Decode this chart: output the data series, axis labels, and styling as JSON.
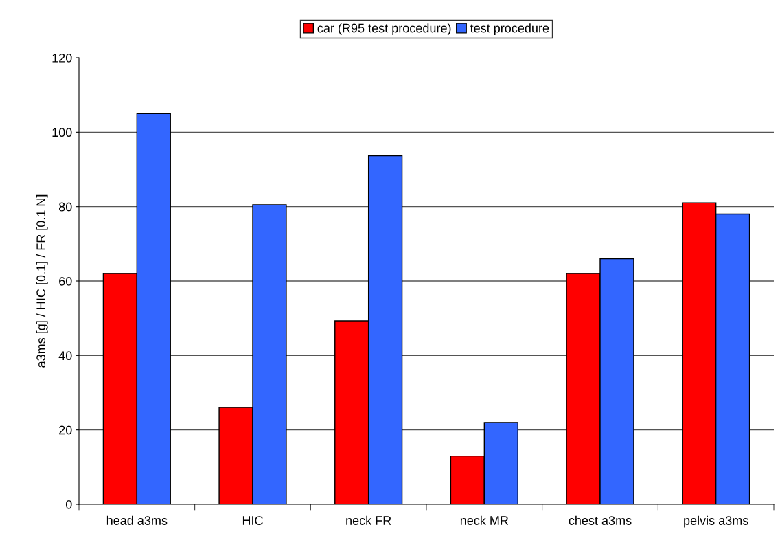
{
  "chart_data": {
    "type": "bar",
    "ylabel": "a3ms [g] / HIC [0.1] / FR [0.1 N]",
    "categories": [
      "head a3ms",
      "HIC",
      "neck FR",
      "neck MR",
      "chest a3ms",
      "pelvis a3ms"
    ],
    "series": [
      {
        "name": "car (R95 test procedure)",
        "color": "#ff0000",
        "values": [
          62,
          26,
          49.3,
          13,
          62,
          81
        ]
      },
      {
        "name": "test procedure",
        "color": "#3366ff",
        "values": [
          105,
          80.5,
          93.7,
          22,
          66,
          78
        ]
      }
    ],
    "ylim": [
      0,
      120
    ],
    "yticks": [
      0,
      20,
      40,
      60,
      80,
      100,
      120
    ],
    "grid": "y",
    "legend": "top"
  }
}
